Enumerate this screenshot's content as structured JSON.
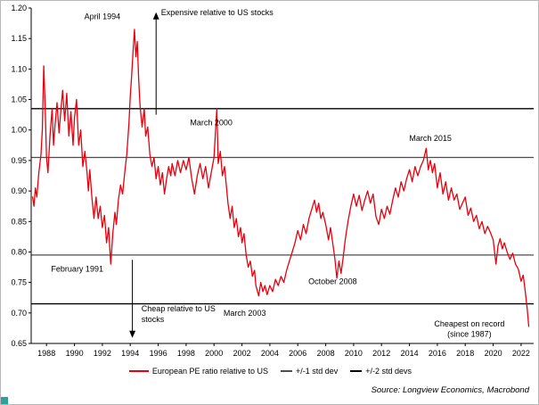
{
  "chart_data": {
    "type": "line",
    "title": "",
    "xlabel": "",
    "ylabel": "",
    "xlim": [
      1986.9,
      2022.9
    ],
    "ylim": [
      0.65,
      1.2
    ],
    "x_ticks": [
      1988,
      1990,
      1992,
      1994,
      1996,
      1998,
      2000,
      2002,
      2004,
      2006,
      2008,
      2010,
      2012,
      2014,
      2016,
      2018,
      2020,
      2022
    ],
    "y_ticks": [
      0.65,
      0.7,
      0.75,
      0.8,
      0.85,
      0.9,
      0.95,
      1.0,
      1.05,
      1.1,
      1.15,
      1.2
    ],
    "grid": false,
    "legend_position": "bottom",
    "hlines": [
      {
        "label": "+2 std devs",
        "y": 1.035,
        "color": "#000000",
        "width": 1.4
      },
      {
        "label": "+1 std dev",
        "y": 0.955,
        "color": "#4d4d4d",
        "width": 1.2
      },
      {
        "label": "-1 std dev",
        "y": 0.795,
        "color": "#4d4d4d",
        "width": 1.2
      },
      {
        "label": "-2 std devs",
        "y": 0.715,
        "color": "#000000",
        "width": 1.4
      }
    ],
    "series": [
      {
        "name": "European PE ratio relative to US",
        "color": "#e8000d",
        "points": [
          [
            1987.0,
            0.89
          ],
          [
            1987.1,
            0.875
          ],
          [
            1987.2,
            0.905
          ],
          [
            1987.3,
            0.89
          ],
          [
            1987.45,
            0.93
          ],
          [
            1987.6,
            0.96
          ],
          [
            1987.7,
            1.0
          ],
          [
            1987.8,
            1.105
          ],
          [
            1987.9,
            1.04
          ],
          [
            1988.0,
            0.955
          ],
          [
            1988.1,
            0.93
          ],
          [
            1988.25,
            0.99
          ],
          [
            1988.4,
            1.035
          ],
          [
            1988.5,
            0.975
          ],
          [
            1988.6,
            1.005
          ],
          [
            1988.75,
            1.045
          ],
          [
            1988.9,
            0.995
          ],
          [
            1989.0,
            1.025
          ],
          [
            1989.15,
            1.065
          ],
          [
            1989.3,
            1.015
          ],
          [
            1989.45,
            1.06
          ],
          [
            1989.6,
            0.99
          ],
          [
            1989.75,
            1.03
          ],
          [
            1989.9,
            0.975
          ],
          [
            1990.0,
            1.02
          ],
          [
            1990.15,
            1.05
          ],
          [
            1990.3,
            0.975
          ],
          [
            1990.45,
            1.0
          ],
          [
            1990.6,
            0.94
          ],
          [
            1990.75,
            0.965
          ],
          [
            1990.9,
            0.93
          ],
          [
            1991.0,
            0.9
          ],
          [
            1991.1,
            0.935
          ],
          [
            1991.25,
            0.89
          ],
          [
            1991.4,
            0.855
          ],
          [
            1991.55,
            0.89
          ],
          [
            1991.7,
            0.855
          ],
          [
            1991.85,
            0.875
          ],
          [
            1992.0,
            0.84
          ],
          [
            1992.15,
            0.86
          ],
          [
            1992.3,
            0.815
          ],
          [
            1992.45,
            0.84
          ],
          [
            1992.6,
            0.78
          ],
          [
            1992.75,
            0.83
          ],
          [
            1992.9,
            0.865
          ],
          [
            1993.0,
            0.845
          ],
          [
            1993.15,
            0.885
          ],
          [
            1993.3,
            0.91
          ],
          [
            1993.45,
            0.895
          ],
          [
            1993.6,
            0.93
          ],
          [
            1993.75,
            0.96
          ],
          [
            1993.9,
            1.01
          ],
          [
            1994.0,
            1.055
          ],
          [
            1994.1,
            1.09
          ],
          [
            1994.2,
            1.13
          ],
          [
            1994.3,
            1.165
          ],
          [
            1994.4,
            1.12
          ],
          [
            1994.5,
            1.145
          ],
          [
            1994.6,
            1.085
          ],
          [
            1994.7,
            1.04
          ],
          [
            1994.85,
            1.005
          ],
          [
            1995.0,
            1.035
          ],
          [
            1995.1,
            0.99
          ],
          [
            1995.25,
            1.005
          ],
          [
            1995.4,
            0.96
          ],
          [
            1995.55,
            0.94
          ],
          [
            1995.7,
            0.955
          ],
          [
            1995.85,
            0.92
          ],
          [
            1996.0,
            0.94
          ],
          [
            1996.15,
            0.91
          ],
          [
            1996.3,
            0.93
          ],
          [
            1996.45,
            0.895
          ],
          [
            1996.6,
            0.92
          ],
          [
            1996.75,
            0.94
          ],
          [
            1996.9,
            0.925
          ],
          [
            1997.0,
            0.945
          ],
          [
            1997.2,
            0.925
          ],
          [
            1997.4,
            0.95
          ],
          [
            1997.6,
            0.93
          ],
          [
            1997.8,
            0.95
          ],
          [
            1998.0,
            0.935
          ],
          [
            1998.2,
            0.955
          ],
          [
            1998.4,
            0.92
          ],
          [
            1998.6,
            0.895
          ],
          [
            1998.8,
            0.925
          ],
          [
            1999.0,
            0.945
          ],
          [
            1999.2,
            0.92
          ],
          [
            1999.4,
            0.94
          ],
          [
            1999.6,
            0.905
          ],
          [
            1999.8,
            0.93
          ],
          [
            2000.0,
            0.955
          ],
          [
            2000.2,
            1.035
          ],
          [
            2000.3,
            0.945
          ],
          [
            2000.45,
            0.965
          ],
          [
            2000.6,
            0.925
          ],
          [
            2000.75,
            0.94
          ],
          [
            2000.9,
            0.905
          ],
          [
            2001.0,
            0.88
          ],
          [
            2001.15,
            0.855
          ],
          [
            2001.3,
            0.875
          ],
          [
            2001.45,
            0.84
          ],
          [
            2001.6,
            0.855
          ],
          [
            2001.75,
            0.825
          ],
          [
            2001.9,
            0.84
          ],
          [
            2002.0,
            0.815
          ],
          [
            2002.15,
            0.83
          ],
          [
            2002.3,
            0.795
          ],
          [
            2002.45,
            0.775
          ],
          [
            2002.6,
            0.785
          ],
          [
            2002.75,
            0.76
          ],
          [
            2002.9,
            0.77
          ],
          [
            2003.0,
            0.745
          ],
          [
            2003.2,
            0.728
          ],
          [
            2003.35,
            0.75
          ],
          [
            2003.5,
            0.735
          ],
          [
            2003.65,
            0.745
          ],
          [
            2003.8,
            0.73
          ],
          [
            2004.0,
            0.745
          ],
          [
            2004.2,
            0.735
          ],
          [
            2004.4,
            0.755
          ],
          [
            2004.6,
            0.745
          ],
          [
            2004.8,
            0.76
          ],
          [
            2005.0,
            0.75
          ],
          [
            2005.2,
            0.77
          ],
          [
            2005.4,
            0.785
          ],
          [
            2005.6,
            0.8
          ],
          [
            2005.8,
            0.815
          ],
          [
            2006.0,
            0.835
          ],
          [
            2006.2,
            0.82
          ],
          [
            2006.4,
            0.845
          ],
          [
            2006.6,
            0.83
          ],
          [
            2006.8,
            0.855
          ],
          [
            2007.0,
            0.87
          ],
          [
            2007.2,
            0.885
          ],
          [
            2007.35,
            0.865
          ],
          [
            2007.5,
            0.88
          ],
          [
            2007.65,
            0.855
          ],
          [
            2007.8,
            0.865
          ],
          [
            2008.0,
            0.845
          ],
          [
            2008.2,
            0.82
          ],
          [
            2008.35,
            0.84
          ],
          [
            2008.5,
            0.815
          ],
          [
            2008.65,
            0.79
          ],
          [
            2008.8,
            0.757
          ],
          [
            2008.95,
            0.785
          ],
          [
            2009.1,
            0.765
          ],
          [
            2009.25,
            0.79
          ],
          [
            2009.4,
            0.82
          ],
          [
            2009.6,
            0.85
          ],
          [
            2009.8,
            0.875
          ],
          [
            2010.0,
            0.895
          ],
          [
            2010.2,
            0.875
          ],
          [
            2010.4,
            0.893
          ],
          [
            2010.6,
            0.868
          ],
          [
            2010.8,
            0.885
          ],
          [
            2011.0,
            0.9
          ],
          [
            2011.2,
            0.88
          ],
          [
            2011.4,
            0.895
          ],
          [
            2011.6,
            0.858
          ],
          [
            2011.8,
            0.845
          ],
          [
            2012.0,
            0.87
          ],
          [
            2012.2,
            0.855
          ],
          [
            2012.4,
            0.875
          ],
          [
            2012.6,
            0.862
          ],
          [
            2012.8,
            0.885
          ],
          [
            2013.0,
            0.905
          ],
          [
            2013.2,
            0.89
          ],
          [
            2013.4,
            0.915
          ],
          [
            2013.6,
            0.9
          ],
          [
            2013.8,
            0.92
          ],
          [
            2014.0,
            0.935
          ],
          [
            2014.2,
            0.915
          ],
          [
            2014.4,
            0.94
          ],
          [
            2014.6,
            0.925
          ],
          [
            2014.8,
            0.94
          ],
          [
            2015.0,
            0.95
          ],
          [
            2015.2,
            0.97
          ],
          [
            2015.35,
            0.935
          ],
          [
            2015.5,
            0.95
          ],
          [
            2015.65,
            0.93
          ],
          [
            2015.8,
            0.945
          ],
          [
            2016.0,
            0.905
          ],
          [
            2016.2,
            0.93
          ],
          [
            2016.4,
            0.895
          ],
          [
            2016.6,
            0.915
          ],
          [
            2016.8,
            0.885
          ],
          [
            2017.0,
            0.905
          ],
          [
            2017.2,
            0.885
          ],
          [
            2017.4,
            0.895
          ],
          [
            2017.6,
            0.87
          ],
          [
            2017.8,
            0.88
          ],
          [
            2018.0,
            0.89
          ],
          [
            2018.2,
            0.86
          ],
          [
            2018.4,
            0.872
          ],
          [
            2018.6,
            0.85
          ],
          [
            2018.8,
            0.86
          ],
          [
            2019.0,
            0.838
          ],
          [
            2019.2,
            0.85
          ],
          [
            2019.4,
            0.83
          ],
          [
            2019.6,
            0.842
          ],
          [
            2019.8,
            0.832
          ],
          [
            2020.0,
            0.82
          ],
          [
            2020.2,
            0.78
          ],
          [
            2020.35,
            0.81
          ],
          [
            2020.5,
            0.822
          ],
          [
            2020.65,
            0.805
          ],
          [
            2020.8,
            0.815
          ],
          [
            2021.0,
            0.8
          ],
          [
            2021.2,
            0.788
          ],
          [
            2021.4,
            0.798
          ],
          [
            2021.6,
            0.78
          ],
          [
            2021.8,
            0.772
          ],
          [
            2022.0,
            0.752
          ],
          [
            2022.15,
            0.762
          ],
          [
            2022.3,
            0.735
          ],
          [
            2022.45,
            0.705
          ],
          [
            2022.55,
            0.678
          ]
        ]
      }
    ],
    "annotations": [
      {
        "text": "April 1994",
        "x": 1992.0,
        "y": 1.182,
        "anchor": "middle"
      },
      {
        "text": "Expensive relative to US stocks",
        "x": 1996.2,
        "y": 1.188,
        "anchor": "start"
      },
      {
        "text": "March 2000",
        "x": 1999.8,
        "y": 1.008,
        "anchor": "middle"
      },
      {
        "text": "March 2015",
        "x": 2015.5,
        "y": 0.982,
        "anchor": "middle"
      },
      {
        "text": "February 1991",
        "x": 1990.2,
        "y": 0.768,
        "anchor": "middle"
      },
      {
        "text": "Cheap relative to US",
        "x": 1994.8,
        "y": 0.703,
        "anchor": "start"
      },
      {
        "text": "stocks",
        "x": 1994.8,
        "y": 0.685,
        "anchor": "start"
      },
      {
        "text": "March 2003",
        "x": 2002.2,
        "y": 0.695,
        "anchor": "middle"
      },
      {
        "text": "October 2008",
        "x": 2008.5,
        "y": 0.747,
        "anchor": "middle"
      },
      {
        "text": "Cheapest on record",
        "x": 2018.3,
        "y": 0.678,
        "anchor": "middle"
      },
      {
        "text": "(since 1987)",
        "x": 2018.3,
        "y": 0.661,
        "anchor": "middle"
      }
    ],
    "arrows": [
      {
        "x": 1995.85,
        "from": 1.025,
        "to": 1.193
      },
      {
        "x": 1994.15,
        "from": 0.787,
        "to": 0.659
      }
    ],
    "legend": [
      {
        "label": "European PE ratio relative to US",
        "color": "#e8000d"
      },
      {
        "label": "+/-1 std dev",
        "color": "#4d4d4d"
      },
      {
        "label": "+/-2 std devs",
        "color": "#000000"
      }
    ],
    "source": "Source: Longview Economics, Macrobond"
  }
}
